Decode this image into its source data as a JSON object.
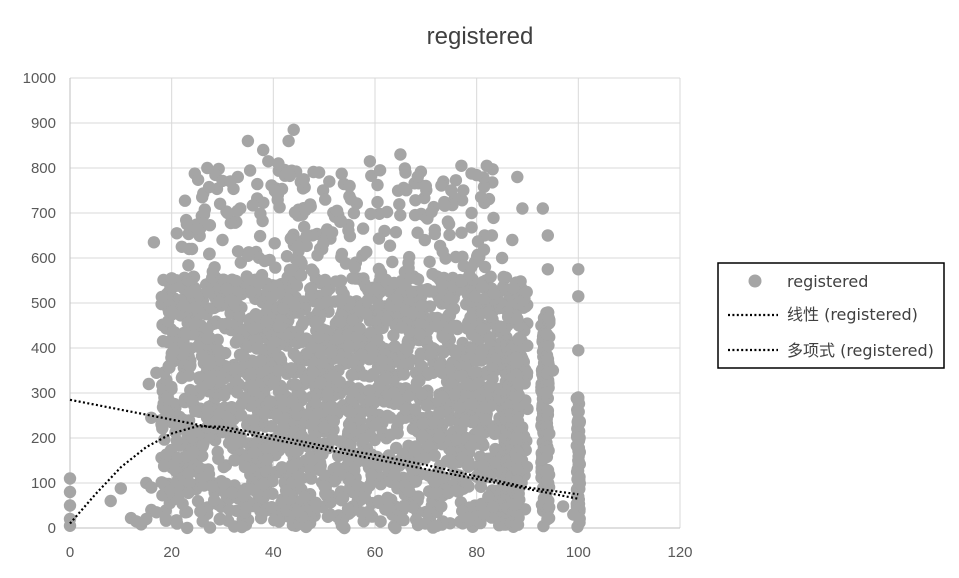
{
  "chart_data": {
    "type": "scatter",
    "title": "registered",
    "xlabel": "",
    "ylabel": "",
    "xlim": [
      0,
      120
    ],
    "ylim": [
      0,
      1000
    ],
    "x_ticks": [
      0,
      20,
      40,
      60,
      80,
      100,
      120
    ],
    "y_ticks": [
      0,
      100,
      200,
      300,
      400,
      500,
      600,
      700,
      800,
      900,
      1000
    ],
    "grid": "vertical and horizontal major gridlines",
    "legend_position": "right",
    "marker_color": "#a5a5a5",
    "series": [
      {
        "name": "registered",
        "kind": "points",
        "points": [
          [
            0,
            110
          ],
          [
            0,
            80
          ],
          [
            0,
            50
          ],
          [
            0,
            20
          ],
          [
            0,
            5
          ],
          [
            8,
            60
          ],
          [
            10,
            88
          ],
          [
            12,
            22
          ],
          [
            13,
            15
          ],
          [
            14,
            8
          ],
          [
            15,
            20
          ],
          [
            16,
            40
          ],
          [
            17,
            35
          ],
          [
            15,
            100
          ],
          [
            16,
            90
          ],
          [
            15.5,
            320
          ],
          [
            16,
            245
          ],
          [
            16.5,
            635
          ],
          [
            17,
            345
          ],
          [
            18,
            230
          ],
          [
            19,
            260
          ],
          [
            20,
            555
          ],
          [
            20,
            480
          ],
          [
            21,
            655
          ],
          [
            22,
            625
          ],
          [
            23,
            675
          ],
          [
            24,
            620
          ],
          [
            25,
            665
          ],
          [
            26,
            735
          ],
          [
            27,
            800
          ],
          [
            30,
            640
          ],
          [
            31,
            700
          ],
          [
            33,
            780
          ],
          [
            35,
            860
          ],
          [
            38,
            840
          ],
          [
            39,
            815
          ],
          [
            41,
            810
          ],
          [
            43,
            860
          ],
          [
            44,
            885
          ],
          [
            46,
            775
          ],
          [
            49,
            790
          ],
          [
            51,
            770
          ],
          [
            55,
            760
          ],
          [
            59,
            815
          ],
          [
            61,
            795
          ],
          [
            65,
            830
          ],
          [
            66,
            790
          ],
          [
            70,
            760
          ],
          [
            75,
            750
          ],
          [
            77,
            805
          ],
          [
            79,
            700
          ],
          [
            82,
            805
          ],
          [
            83,
            650
          ],
          [
            85,
            600
          ],
          [
            87,
            640
          ],
          [
            88,
            780
          ],
          [
            89,
            710
          ],
          [
            93,
            710
          ],
          [
            94,
            650
          ],
          [
            94,
            575
          ],
          [
            95,
            350
          ],
          [
            100,
            575
          ],
          [
            100,
            515
          ],
          [
            100,
            395
          ],
          [
            100,
            290
          ],
          [
            100,
            240
          ],
          [
            100,
            200
          ],
          [
            100,
            150
          ],
          [
            100,
            110
          ],
          [
            100,
            70
          ],
          [
            97,
            48
          ],
          [
            99,
            30
          ]
        ],
        "dense_band": {
          "x_range": [
            18,
            90
          ],
          "y_range": [
            0,
            560
          ],
          "sparse_y_range": [
            560,
            800
          ],
          "x_columns_dense": [
            86,
            87,
            88,
            93,
            94,
            100
          ]
        }
      },
      {
        "name": "线性 (registered)",
        "kind": "linear-trendline",
        "line_color": "#000000",
        "points": [
          [
            0,
            285
          ],
          [
            100,
            65
          ]
        ]
      },
      {
        "name": "多项式 (registered)",
        "kind": "polynomial-trendline",
        "line_color": "#000000",
        "points": [
          [
            0,
            10
          ],
          [
            5,
            75
          ],
          [
            10,
            135
          ],
          [
            15,
            180
          ],
          [
            20,
            210
          ],
          [
            25,
            226
          ],
          [
            30,
            225
          ],
          [
            40,
            205
          ],
          [
            50,
            182
          ],
          [
            60,
            162
          ],
          [
            70,
            140
          ],
          [
            80,
            115
          ],
          [
            90,
            90
          ],
          [
            100,
            75
          ]
        ]
      }
    ]
  }
}
